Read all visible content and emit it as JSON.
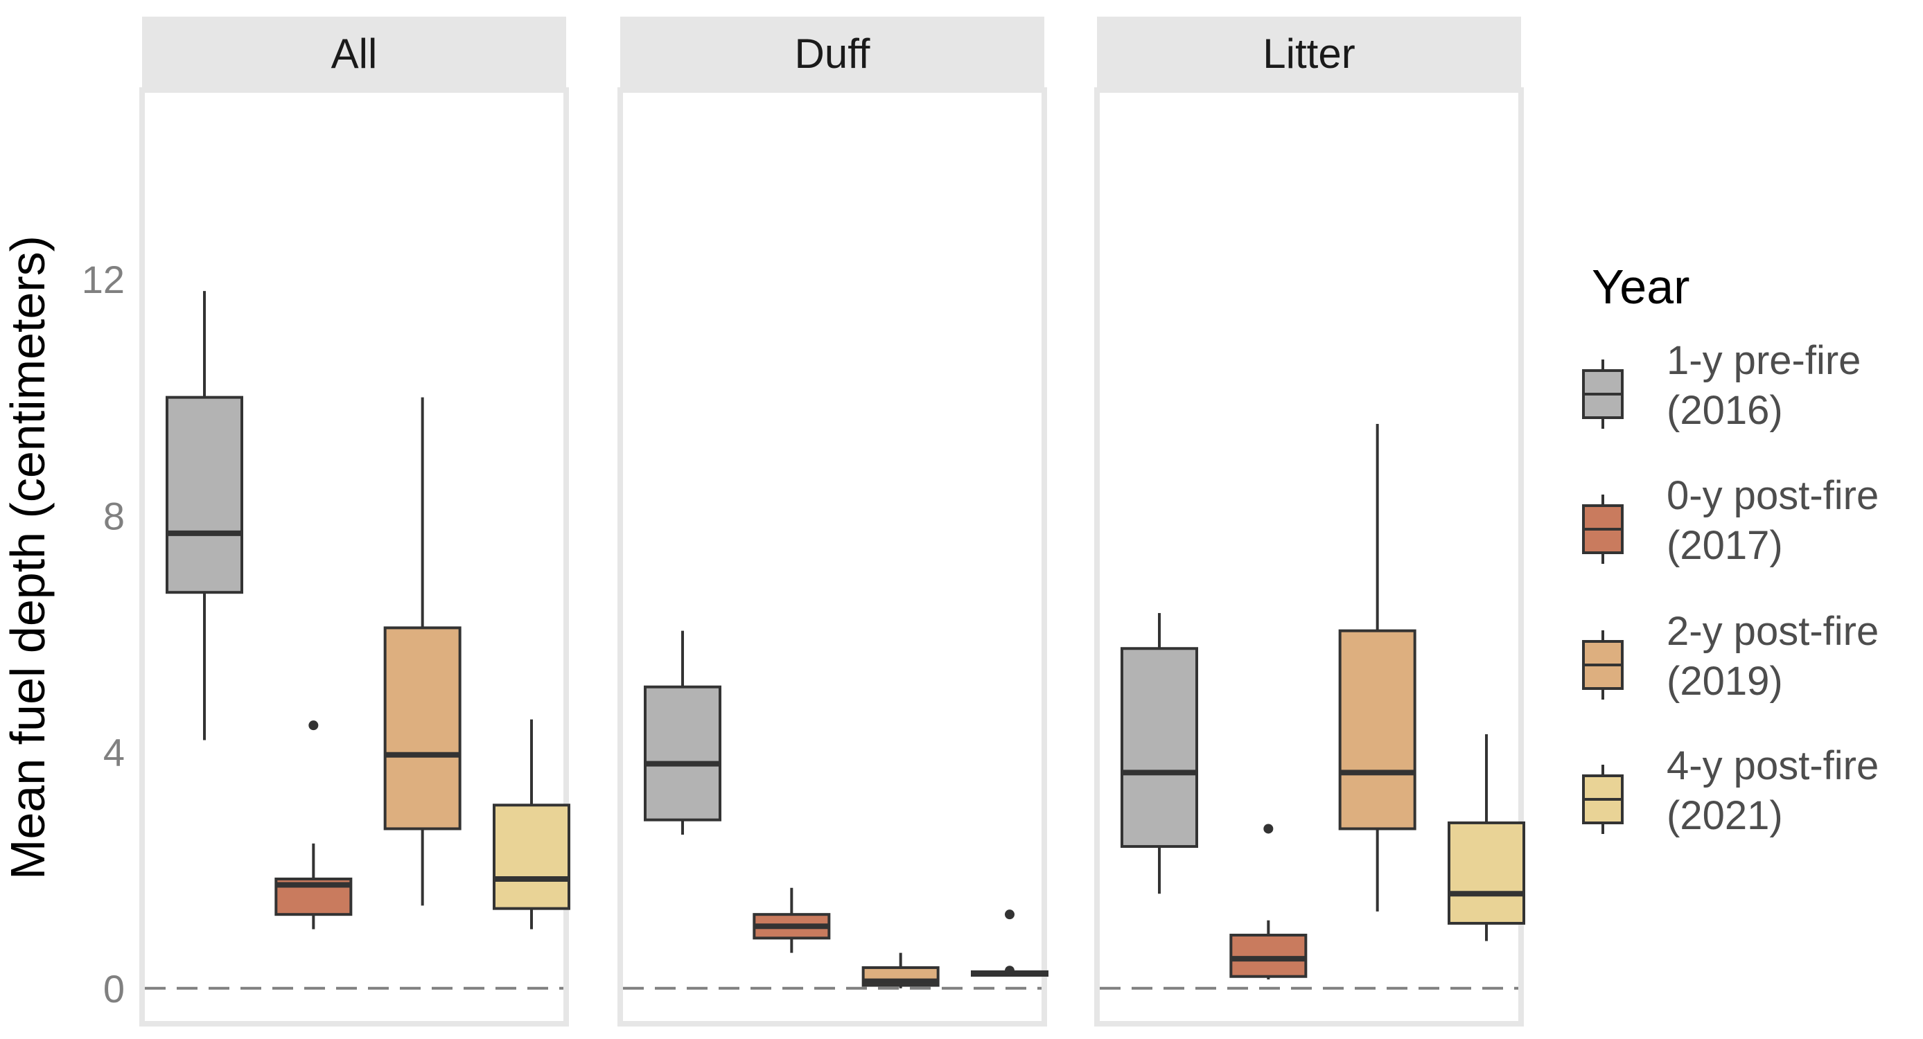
{
  "chart_data": {
    "type": "boxplot",
    "ylabel": "Mean fuel depth (centimeters)",
    "ylim": [
      -0.6,
      15.2
    ],
    "yticks": [
      "0",
      "4",
      "8",
      "12"
    ],
    "reference_line": 0,
    "panels": [
      {
        "name": "All",
        "boxes": [
          {
            "group": "1-y pre-fire (2016)",
            "whisker_low": 4.2,
            "q1": 6.7,
            "median": 7.7,
            "q3": 10.0,
            "whisker_high": 11.8,
            "outliers": []
          },
          {
            "group": "0-y post-fire (2017)",
            "whisker_low": 1.0,
            "q1": 1.25,
            "median": 1.75,
            "q3": 1.85,
            "whisker_high": 2.45,
            "outliers": [
              4.45
            ]
          },
          {
            "group": "2-y post-fire (2019)",
            "whisker_low": 1.4,
            "q1": 2.7,
            "median": 3.95,
            "q3": 6.1,
            "whisker_high": 10.0,
            "outliers": []
          },
          {
            "group": "4-y post-fire (2021)",
            "whisker_low": 1.0,
            "q1": 1.35,
            "median": 1.85,
            "q3": 3.1,
            "whisker_high": 4.55,
            "outliers": []
          }
        ]
      },
      {
        "name": "Duff",
        "boxes": [
          {
            "group": "1-y pre-fire (2016)",
            "whisker_low": 2.6,
            "q1": 2.85,
            "median": 3.8,
            "q3": 5.1,
            "whisker_high": 6.05,
            "outliers": []
          },
          {
            "group": "0-y post-fire (2017)",
            "whisker_low": 0.6,
            "q1": 0.85,
            "median": 1.05,
            "q3": 1.25,
            "whisker_high": 1.7,
            "outliers": []
          },
          {
            "group": "2-y post-fire (2019)",
            "whisker_low": 0.0,
            "q1": 0.05,
            "median": 0.12,
            "q3": 0.35,
            "whisker_high": 0.6,
            "outliers": []
          },
          {
            "group": "4-y post-fire (2021)",
            "whisker_low": 0.22,
            "q1": 0.22,
            "median": 0.25,
            "q3": 0.28,
            "whisker_high": 0.28,
            "outliers": [
              1.25,
              0.3
            ]
          }
        ]
      },
      {
        "name": "Litter",
        "boxes": [
          {
            "group": "1-y pre-fire (2016)",
            "whisker_low": 1.6,
            "q1": 2.4,
            "median": 3.65,
            "q3": 5.75,
            "whisker_high": 6.35,
            "outliers": []
          },
          {
            "group": "0-y post-fire (2017)",
            "whisker_low": 0.15,
            "q1": 0.2,
            "median": 0.5,
            "q3": 0.9,
            "whisker_high": 1.15,
            "outliers": [
              2.7
            ]
          },
          {
            "group": "2-y post-fire (2019)",
            "whisker_low": 1.3,
            "q1": 2.7,
            "median": 3.65,
            "q3": 6.05,
            "whisker_high": 9.55,
            "outliers": []
          },
          {
            "group": "4-y post-fire (2021)",
            "whisker_low": 0.8,
            "q1": 1.1,
            "median": 1.6,
            "q3": 2.8,
            "whisker_high": 4.3,
            "outliers": []
          }
        ]
      }
    ],
    "legend": {
      "title": "Year",
      "placement": "right",
      "items": [
        {
          "line1": "1-y pre-fire",
          "line2": "(2016)",
          "color": "#b3b3b3"
        },
        {
          "line1": "0-y post-fire",
          "line2": "(2017)",
          "color": "#c97b5e"
        },
        {
          "line1": "2-y post-fire",
          "line2": "(2019)",
          "color": "#ddaf7f"
        },
        {
          "line1": "4-y post-fire",
          "line2": "(2021)",
          "color": "#e9d396"
        }
      ]
    },
    "colors": {
      "strip_fill": "#e6e6e6",
      "panel_border": "#e6e6e6",
      "box_stroke": "#333333",
      "reference_line": "#808080"
    }
  }
}
